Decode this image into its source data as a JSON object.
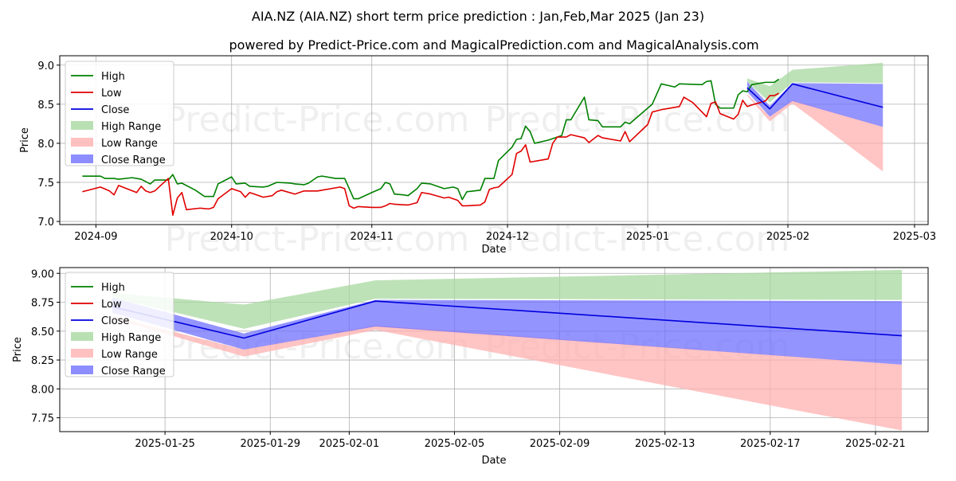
{
  "title": "AIA.NZ (AIA.NZ) short term price prediction : Jan,Feb,Mar 2025 (Jan 23)",
  "subtitle": "powered by Predict-Price.com and MagicalPrediction.com and MagicalAnalysis.com",
  "watermark": "Predict-Price.com",
  "colors": {
    "high": "#008000",
    "low": "#e00000",
    "close": "#0000dd",
    "high_range": "#a8d8a0",
    "low_range": "#ffb0b0",
    "close_range": "#7070ff"
  },
  "chart_data": [
    {
      "type": "line",
      "xlabel": "Date",
      "ylabel": "Price",
      "xlim": [
        "2024-08-24",
        "2025-03-04"
      ],
      "ylim": [
        6.96,
        9.12
      ],
      "x_ticks": [
        "2024-09",
        "2024-10",
        "2024-11",
        "2024-12",
        "2025-01",
        "2025-02",
        "2025-03"
      ],
      "y_ticks": [
        "7.0",
        "7.5",
        "8.0",
        "8.5",
        "9.0"
      ],
      "grid": true,
      "legend": "top-left",
      "legend_entries": [
        "High",
        "Low",
        "Close",
        "High Range",
        "Low Range",
        "Close Range"
      ],
      "series": [
        {
          "name": "High",
          "points": [
            [
              "2024-08-29",
              7.58
            ],
            [
              "2024-09-02",
              7.58
            ],
            [
              "2024-09-03",
              7.55
            ],
            [
              "2024-09-05",
              7.55
            ],
            [
              "2024-09-06",
              7.54
            ],
            [
              "2024-09-09",
              7.56
            ],
            [
              "2024-09-10",
              7.55
            ],
            [
              "2024-09-11",
              7.54
            ],
            [
              "2024-09-13",
              7.48
            ],
            [
              "2024-09-14",
              7.53
            ],
            [
              "2024-09-17",
              7.53
            ],
            [
              "2024-09-18",
              7.6
            ],
            [
              "2024-09-19",
              7.48
            ],
            [
              "2024-09-20",
              7.49
            ],
            [
              "2024-09-23",
              7.4
            ],
            [
              "2024-09-25",
              7.32
            ],
            [
              "2024-09-27",
              7.32
            ],
            [
              "2024-09-28",
              7.48
            ],
            [
              "2024-10-01",
              7.57
            ],
            [
              "2024-10-02",
              7.48
            ],
            [
              "2024-10-04",
              7.49
            ],
            [
              "2024-10-05",
              7.45
            ],
            [
              "2024-10-08",
              7.44
            ],
            [
              "2024-10-09",
              7.45
            ],
            [
              "2024-10-11",
              7.5
            ],
            [
              "2024-10-14",
              7.49
            ],
            [
              "2024-10-15",
              7.48
            ],
            [
              "2024-10-17",
              7.47
            ],
            [
              "2024-10-18",
              7.49
            ],
            [
              "2024-10-20",
              7.57
            ],
            [
              "2024-10-21",
              7.58
            ],
            [
              "2024-10-24",
              7.55
            ],
            [
              "2024-10-26",
              7.55
            ],
            [
              "2024-10-27",
              7.42
            ],
            [
              "2024-10-28",
              7.29
            ],
            [
              "2024-10-29",
              7.29
            ],
            [
              "2024-11-01",
              7.37
            ],
            [
              "2024-11-03",
              7.42
            ],
            [
              "2024-11-04",
              7.5
            ],
            [
              "2024-11-05",
              7.48
            ],
            [
              "2024-11-06",
              7.35
            ],
            [
              "2024-11-08",
              7.34
            ],
            [
              "2024-11-09",
              7.33
            ],
            [
              "2024-11-11",
              7.42
            ],
            [
              "2024-11-12",
              7.49
            ],
            [
              "2024-11-14",
              7.48
            ],
            [
              "2024-11-17",
              7.42
            ],
            [
              "2024-11-19",
              7.44
            ],
            [
              "2024-11-20",
              7.42
            ],
            [
              "2024-11-21",
              7.28
            ],
            [
              "2024-11-22",
              7.38
            ],
            [
              "2024-11-25",
              7.4
            ],
            [
              "2024-11-26",
              7.55
            ],
            [
              "2024-11-28",
              7.55
            ],
            [
              "2024-11-29",
              7.78
            ],
            [
              "2024-12-02",
              7.95
            ],
            [
              "2024-12-03",
              8.05
            ],
            [
              "2024-12-04",
              8.06
            ],
            [
              "2024-12-05",
              8.22
            ],
            [
              "2024-12-06",
              8.15
            ],
            [
              "2024-12-07",
              8.0
            ],
            [
              "2024-12-10",
              8.04
            ],
            [
              "2024-12-12",
              8.08
            ],
            [
              "2024-12-13",
              8.1
            ],
            [
              "2024-12-14",
              8.3
            ],
            [
              "2024-12-15",
              8.3
            ],
            [
              "2024-12-18",
              8.59
            ],
            [
              "2024-12-19",
              8.3
            ],
            [
              "2024-12-21",
              8.29
            ],
            [
              "2024-12-22",
              8.21
            ],
            [
              "2024-12-25",
              8.21
            ],
            [
              "2024-12-26",
              8.21
            ],
            [
              "2024-12-27",
              8.27
            ],
            [
              "2024-12-28",
              8.25
            ],
            [
              "2025-01-02",
              8.5
            ],
            [
              "2025-01-04",
              8.76
            ],
            [
              "2025-01-07",
              8.72
            ],
            [
              "2025-01-08",
              8.76
            ],
            [
              "2025-01-13",
              8.75
            ],
            [
              "2025-01-14",
              8.79
            ],
            [
              "2025-01-15",
              8.8
            ],
            [
              "2025-01-16",
              8.5
            ],
            [
              "2025-01-17",
              8.45
            ],
            [
              "2025-01-20",
              8.45
            ],
            [
              "2025-01-21",
              8.62
            ],
            [
              "2025-01-22",
              8.67
            ],
            [
              "2025-01-23",
              8.66
            ],
            [
              "2025-01-24",
              8.75
            ],
            [
              "2025-01-27",
              8.78
            ],
            [
              "2025-01-29",
              8.78
            ],
            [
              "2025-01-30",
              8.82
            ]
          ]
        },
        {
          "name": "Low",
          "points": [
            [
              "2024-08-29",
              7.38
            ],
            [
              "2024-09-02",
              7.44
            ],
            [
              "2024-09-04",
              7.39
            ],
            [
              "2024-09-05",
              7.34
            ],
            [
              "2024-09-06",
              7.46
            ],
            [
              "2024-09-10",
              7.37
            ],
            [
              "2024-09-11",
              7.45
            ],
            [
              "2024-09-12",
              7.39
            ],
            [
              "2024-09-13",
              7.37
            ],
            [
              "2024-09-14",
              7.39
            ],
            [
              "2024-09-17",
              7.55
            ],
            [
              "2024-09-18",
              7.08
            ],
            [
              "2024-09-19",
              7.3
            ],
            [
              "2024-09-20",
              7.37
            ],
            [
              "2024-09-21",
              7.15
            ],
            [
              "2024-09-24",
              7.17
            ],
            [
              "2024-09-26",
              7.16
            ],
            [
              "2024-09-27",
              7.18
            ],
            [
              "2024-09-28",
              7.29
            ],
            [
              "2024-10-01",
              7.42
            ],
            [
              "2024-10-03",
              7.38
            ],
            [
              "2024-10-04",
              7.31
            ],
            [
              "2024-10-05",
              7.37
            ],
            [
              "2024-10-08",
              7.31
            ],
            [
              "2024-10-10",
              7.33
            ],
            [
              "2024-10-11",
              7.38
            ],
            [
              "2024-10-12",
              7.4
            ],
            [
              "2024-10-15",
              7.35
            ],
            [
              "2024-10-17",
              7.39
            ],
            [
              "2024-10-18",
              7.39
            ],
            [
              "2024-10-20",
              7.39
            ],
            [
              "2024-10-21",
              7.4
            ],
            [
              "2024-10-25",
              7.44
            ],
            [
              "2024-10-26",
              7.42
            ],
            [
              "2024-10-27",
              7.2
            ],
            [
              "2024-10-28",
              7.17
            ],
            [
              "2024-10-29",
              7.19
            ],
            [
              "2024-11-01",
              7.18
            ],
            [
              "2024-11-03",
              7.18
            ],
            [
              "2024-11-04",
              7.2
            ],
            [
              "2024-11-05",
              7.23
            ],
            [
              "2024-11-06",
              7.22
            ],
            [
              "2024-11-09",
              7.21
            ],
            [
              "2024-11-11",
              7.24
            ],
            [
              "2024-11-12",
              7.37
            ],
            [
              "2024-11-14",
              7.35
            ],
            [
              "2024-11-17",
              7.3
            ],
            [
              "2024-11-18",
              7.31
            ],
            [
              "2024-11-20",
              7.27
            ],
            [
              "2024-11-21",
              7.2
            ],
            [
              "2024-11-22",
              7.2
            ],
            [
              "2024-11-25",
              7.21
            ],
            [
              "2024-11-26",
              7.25
            ],
            [
              "2024-11-27",
              7.41
            ],
            [
              "2024-11-28",
              7.43
            ],
            [
              "2024-11-29",
              7.44
            ],
            [
              "2024-12-02",
              7.6
            ],
            [
              "2024-12-03",
              7.87
            ],
            [
              "2024-12-04",
              7.9
            ],
            [
              "2024-12-05",
              7.98
            ],
            [
              "2024-12-06",
              7.76
            ],
            [
              "2024-12-09",
              7.79
            ],
            [
              "2024-12-10",
              7.8
            ],
            [
              "2024-12-11",
              8.0
            ],
            [
              "2024-12-12",
              8.08
            ],
            [
              "2024-12-14",
              8.08
            ],
            [
              "2024-12-15",
              8.11
            ],
            [
              "2024-12-18",
              8.07
            ],
            [
              "2024-12-19",
              8.01
            ],
            [
              "2024-12-21",
              8.1
            ],
            [
              "2024-12-22",
              8.07
            ],
            [
              "2024-12-26",
              8.03
            ],
            [
              "2024-12-27",
              8.15
            ],
            [
              "2024-12-28",
              8.02
            ],
            [
              "2025-01-01",
              8.24
            ],
            [
              "2025-01-02",
              8.4
            ],
            [
              "2025-01-04",
              8.43
            ],
            [
              "2025-01-08",
              8.47
            ],
            [
              "2025-01-09",
              8.59
            ],
            [
              "2025-01-11",
              8.52
            ],
            [
              "2025-01-14",
              8.34
            ],
            [
              "2025-01-15",
              8.51
            ],
            [
              "2025-01-16",
              8.53
            ],
            [
              "2025-01-17",
              8.38
            ],
            [
              "2025-01-20",
              8.31
            ],
            [
              "2025-01-21",
              8.37
            ],
            [
              "2025-01-22",
              8.55
            ],
            [
              "2025-01-23",
              8.47
            ],
            [
              "2025-01-24",
              8.49
            ],
            [
              "2025-01-27",
              8.54
            ],
            [
              "2025-01-28",
              8.61
            ],
            [
              "2025-01-29",
              8.61
            ],
            [
              "2025-01-30",
              8.64
            ]
          ]
        }
      ]
    },
    {
      "type": "area",
      "xlabel": "Date",
      "ylabel": "Price",
      "xlim": [
        "2025-01-21",
        "2025-02-23"
      ],
      "ylim": [
        7.63,
        9.05
      ],
      "x_ticks": [
        "2025-01-25",
        "2025-01-29",
        "2025-02-01",
        "2025-02-05",
        "2025-02-09",
        "2025-02-13",
        "2025-02-17",
        "2025-02-21"
      ],
      "y_ticks": [
        "7.75",
        "8.00",
        "8.25",
        "8.50",
        "8.75",
        "9.00"
      ],
      "grid": true,
      "legend": "top-left",
      "legend_entries": [
        "High",
        "Low",
        "Close",
        "High Range",
        "Low Range",
        "Close Range"
      ],
      "dates": [
        "2025-01-23",
        "2025-01-28",
        "2025-02-02",
        "2025-02-22"
      ],
      "high_range": {
        "upper": [
          8.83,
          8.73,
          8.94,
          9.03
        ],
        "lower": [
          8.79,
          8.52,
          8.78,
          8.77
        ]
      },
      "low_range": {
        "upper": [
          8.63,
          8.34,
          8.55,
          8.21
        ],
        "lower": [
          8.61,
          8.28,
          8.51,
          7.64
        ]
      },
      "close_range": {
        "upper": [
          8.79,
          8.48,
          8.77,
          8.76
        ],
        "lower": [
          8.66,
          8.34,
          8.54,
          8.21
        ]
      },
      "close": [
        8.71,
        8.44,
        8.76,
        8.46
      ]
    }
  ]
}
